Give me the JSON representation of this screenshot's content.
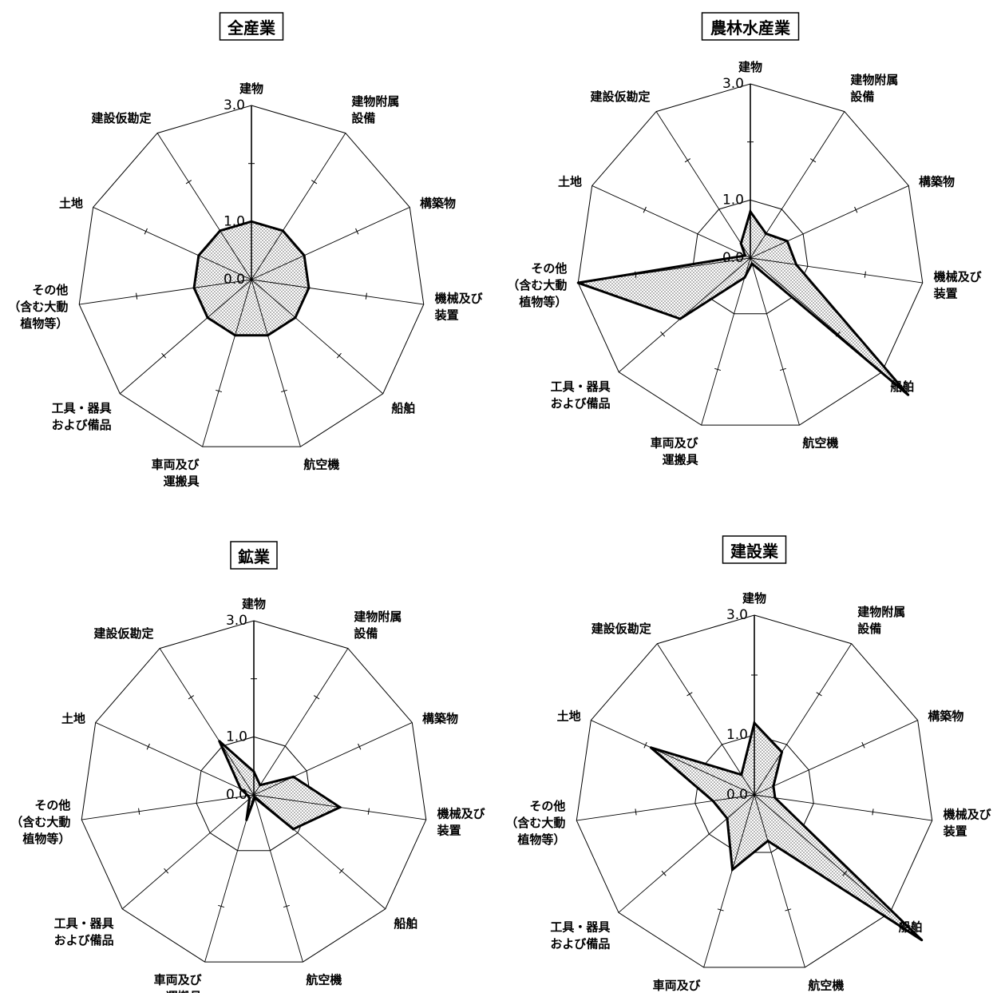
{
  "chart_data": [
    {
      "type": "radar",
      "title": "全産業",
      "axis_labels": [
        "建物",
        "建物附属\n設備",
        "構築物",
        "機械及び\n装置",
        "船舶",
        "航空機",
        "車両及び\n運搬具",
        "工具・器具\nおよび備品",
        "その他\n（含む大動\n植物等）",
        "土地",
        "建設仮勘定"
      ],
      "tick_labels": [
        "0.0",
        "1.0",
        "3.0"
      ],
      "range": [
        0,
        3
      ],
      "values": [
        1.0,
        1.0,
        1.0,
        1.0,
        1.0,
        1.0,
        1.0,
        1.0,
        1.0,
        1.0,
        1.0
      ]
    },
    {
      "type": "radar",
      "title": "農林水産業",
      "axis_labels": [
        "建物",
        "建物附属\n設備",
        "構築物",
        "機械及び\n装置",
        "船舶",
        "航空機",
        "車両及び\n運搬具",
        "工具・器具\nおよび備品",
        "その他\n（含む大動\n植物等）",
        "土地",
        "建設仮勘定"
      ],
      "tick_labels": [
        "0.0",
        "1.0",
        "3.0"
      ],
      "range": [
        0,
        3
      ],
      "values": [
        0.8,
        0.5,
        0.7,
        0.8,
        3.6,
        0.1,
        0.35,
        1.6,
        3.0,
        0.1,
        0.3
      ]
    },
    {
      "type": "radar",
      "title": "鉱業",
      "axis_labels": [
        "建物",
        "建物附属\n設備",
        "構築物",
        "機械及び\n装置",
        "船舶",
        "航空機",
        "車両及び\n運搬具",
        "工具・器具\nおよび備品",
        "その他\n（含む大動\n植物等）",
        "土地",
        "建設仮勘定"
      ],
      "tick_labels": [
        "0.0",
        "1.0",
        "3.0"
      ],
      "range": [
        0,
        3
      ],
      "values": [
        0.4,
        0.2,
        0.75,
        1.5,
        0.9,
        0.05,
        0.45,
        0.1,
        0.1,
        0.25,
        1.1
      ]
    },
    {
      "type": "radar",
      "title": "建設業",
      "axis_labels": [
        "建物",
        "建物附属\n設備",
        "構築物",
        "機械及び\n装置",
        "船舶",
        "航空機",
        "車両及び\n運搬具",
        "工具・器具\nおよび備品",
        "その他\n（含む大動\n植物等）",
        "土地",
        "建設仮勘定"
      ],
      "tick_labels": [
        "0.0",
        "1.0",
        "3.0"
      ],
      "range": [
        0,
        3
      ],
      "values": [
        1.2,
        0.85,
        0.35,
        0.35,
        3.7,
        0.8,
        1.3,
        0.6,
        0.7,
        1.9,
        0.4
      ]
    }
  ]
}
